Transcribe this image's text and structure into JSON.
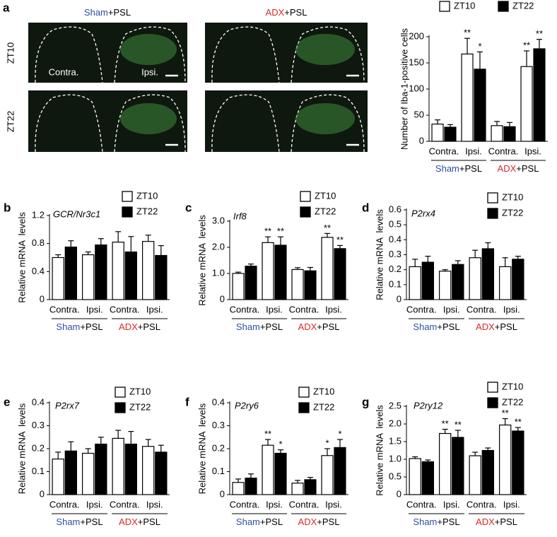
{
  "images": {
    "letter": "a",
    "columns": [
      {
        "name": "Sham",
        "suffix": "+PSL",
        "color": "#2e4fa0"
      },
      {
        "name": "ADX",
        "suffix": "+PSL",
        "color": "#d42a2a"
      }
    ],
    "rows": [
      "ZT10",
      "ZT22"
    ],
    "side_labels": [
      "Contra.",
      "Ipsi."
    ]
  },
  "chart_data": [
    {
      "type": "bar",
      "ylabel": "Number of Iba-1-positive cells",
      "categories": [
        "Contra.",
        "Ipsi.",
        "Contra.",
        "Ipsi."
      ],
      "groups": [
        {
          "name": "Sham",
          "suffix": "+PSL",
          "color": "#2e4fa0"
        },
        {
          "name": "ADX",
          "suffix": "+PSL",
          "color": "#d42a2a"
        }
      ],
      "ylim": [
        0,
        200
      ],
      "yticks": [
        0,
        50,
        100,
        150,
        200
      ],
      "series": [
        {
          "name": "ZT10",
          "color": "#ffffff",
          "values": [
            33,
            167,
            30,
            143
          ],
          "errors": [
            8,
            30,
            8,
            30
          ],
          "stars": [
            null,
            "**",
            null,
            "**"
          ]
        },
        {
          "name": "ZT22",
          "color": "#000000",
          "values": [
            27,
            138,
            28,
            177
          ],
          "errors": [
            5,
            33,
            8,
            18
          ],
          "stars": [
            null,
            "*",
            null,
            "**"
          ]
        }
      ]
    },
    {
      "type": "bar",
      "panel": "b",
      "title": "GCR/Nr3c1",
      "ylabel": "Relative mRNA  levels",
      "categories": [
        "Contra.",
        "Ipsi.",
        "Contra.",
        "Ipsi."
      ],
      "groups": [
        {
          "name": "Sham",
          "suffix": "+PSL",
          "color": "#2e4fa0"
        },
        {
          "name": "ADX",
          "suffix": "+PSL",
          "color": "#d42a2a"
        }
      ],
      "ylim": [
        0,
        1.2
      ],
      "yticks": [
        0,
        0.4,
        0.8,
        1.2
      ],
      "series": [
        {
          "name": "ZT10",
          "color": "#ffffff",
          "values": [
            0.6,
            0.64,
            0.82,
            0.83
          ],
          "errors": [
            0.04,
            0.04,
            0.15,
            0.09
          ]
        },
        {
          "name": "ZT22",
          "color": "#000000",
          "values": [
            0.75,
            0.78,
            0.68,
            0.63
          ],
          "errors": [
            0.09,
            0.09,
            0.22,
            0.14
          ]
        }
      ]
    },
    {
      "type": "bar",
      "panel": "c",
      "title": "Irf8",
      "ylabel": "Relative mRNA  levels",
      "categories": [
        "Contra.",
        "Ipsi.",
        "Contra.",
        "Ipsi."
      ],
      "groups": [
        {
          "name": "Sham",
          "suffix": "+PSL",
          "color": "#2e4fa0"
        },
        {
          "name": "ADX",
          "suffix": "+PSL",
          "color": "#d42a2a"
        }
      ],
      "ylim": [
        0,
        3
      ],
      "yticks": [
        0,
        {
          "value": 1,
          "label": "1.0"
        },
        {
          "value": 2,
          "label": "2.0"
        },
        {
          "value": 3,
          "label": "3.0"
        }
      ],
      "series": [
        {
          "name": "ZT10",
          "color": "#ffffff",
          "values": [
            1.0,
            2.18,
            1.15,
            2.38
          ],
          "errors": [
            0.05,
            0.22,
            0.07,
            0.15
          ],
          "stars": [
            null,
            "**",
            null,
            "**"
          ]
        },
        {
          "name": "ZT22",
          "color": "#000000",
          "values": [
            1.28,
            2.08,
            1.1,
            1.95
          ],
          "errors": [
            0.08,
            0.32,
            0.13,
            0.12
          ],
          "stars": [
            null,
            "**",
            null,
            "**"
          ]
        }
      ]
    },
    {
      "type": "bar",
      "panel": "d",
      "title": "P2rx4",
      "ylabel": "Relative mRNA  levels",
      "categories": [
        "Contra.",
        "Ipsi.",
        "Contra.",
        "Ipsi."
      ],
      "groups": [
        {
          "name": "Sham",
          "suffix": "+PSL",
          "color": "#2e4fa0"
        },
        {
          "name": "ADX",
          "suffix": "+PSL",
          "color": "#d42a2a"
        }
      ],
      "ylim": [
        0,
        0.6
      ],
      "yticks": [
        0,
        0.1,
        0.2,
        0.3,
        0.4,
        0.5,
        0.6
      ],
      "series": [
        {
          "name": "ZT10",
          "color": "#ffffff",
          "values": [
            0.22,
            0.19,
            0.28,
            0.22
          ],
          "errors": [
            0.05,
            0.01,
            0.05,
            0.06
          ]
        },
        {
          "name": "ZT22",
          "color": "#000000",
          "values": [
            0.25,
            0.235,
            0.34,
            0.27
          ],
          "errors": [
            0.04,
            0.025,
            0.04,
            0.02
          ]
        }
      ]
    },
    {
      "type": "bar",
      "panel": "e",
      "title": "P2rx7",
      "ylabel": "Relative mRNA  levels",
      "categories": [
        "Contra.",
        "Ipsi.",
        "Contra.",
        "Ipsi."
      ],
      "groups": [
        {
          "name": "Sham",
          "suffix": "+PSL",
          "color": "#2e4fa0"
        },
        {
          "name": "ADX",
          "suffix": "+PSL",
          "color": "#d42a2a"
        }
      ],
      "ylim": [
        0,
        0.4
      ],
      "yticks": [
        0,
        0.1,
        0.2,
        0.3,
        0.4
      ],
      "series": [
        {
          "name": "ZT10",
          "color": "#ffffff",
          "values": [
            0.155,
            0.18,
            0.245,
            0.21
          ],
          "errors": [
            0.03,
            0.02,
            0.035,
            0.03
          ]
        },
        {
          "name": "ZT22",
          "color": "#000000",
          "values": [
            0.19,
            0.22,
            0.22,
            0.185
          ],
          "errors": [
            0.04,
            0.03,
            0.055,
            0.03
          ]
        }
      ]
    },
    {
      "type": "bar",
      "panel": "f",
      "title": "P2ry6",
      "ylabel": "Relative mRNA  levels",
      "categories": [
        "Contra.",
        "Ipsi.",
        "Contra.",
        "Ipsi."
      ],
      "groups": [
        {
          "name": "Sham",
          "suffix": "+PSL",
          "color": "#2e4fa0"
        },
        {
          "name": "ADX",
          "suffix": "+PSL",
          "color": "#d42a2a"
        }
      ],
      "ylim": [
        0,
        0.4
      ],
      "yticks": [
        0,
        0.1,
        0.2,
        0.3,
        0.4
      ],
      "series": [
        {
          "name": "ZT10",
          "color": "#ffffff",
          "values": [
            0.053,
            0.215,
            0.05,
            0.17
          ],
          "errors": [
            0.015,
            0.025,
            0.012,
            0.03
          ],
          "stars": [
            null,
            "**",
            null,
            "*"
          ]
        },
        {
          "name": "ZT22",
          "color": "#000000",
          "values": [
            0.072,
            0.18,
            0.065,
            0.205
          ],
          "errors": [
            0.018,
            0.015,
            0.01,
            0.035
          ],
          "stars": [
            null,
            "*",
            null,
            "*"
          ]
        }
      ]
    },
    {
      "type": "bar",
      "panel": "g",
      "title": "P2ry12",
      "ylabel": "Relative mRNA  levels",
      "categories": [
        "Contra.",
        "Ipsi.",
        "Contra.",
        "Ipsi."
      ],
      "groups": [
        {
          "name": "Sham",
          "suffix": "+PSL",
          "color": "#2e4fa0"
        },
        {
          "name": "ADX",
          "suffix": "+PSL",
          "color": "#d42a2a"
        }
      ],
      "ylim": [
        0,
        2.5
      ],
      "yticks": [
        0,
        0.5,
        {
          "value": 1,
          "label": "1.0"
        },
        1.5,
        {
          "value": 2,
          "label": "2.0"
        },
        2.5
      ],
      "series": [
        {
          "name": "ZT10",
          "color": "#ffffff",
          "values": [
            1.02,
            1.73,
            1.1,
            1.97
          ],
          "errors": [
            0.05,
            0.12,
            0.1,
            0.18
          ],
          "stars": [
            null,
            "**",
            null,
            "**"
          ]
        },
        {
          "name": "ZT22",
          "color": "#000000",
          "values": [
            0.93,
            1.62,
            1.25,
            1.8
          ],
          "errors": [
            0.05,
            0.2,
            0.07,
            0.1
          ],
          "stars": [
            null,
            "**",
            null,
            "**"
          ]
        }
      ]
    }
  ]
}
